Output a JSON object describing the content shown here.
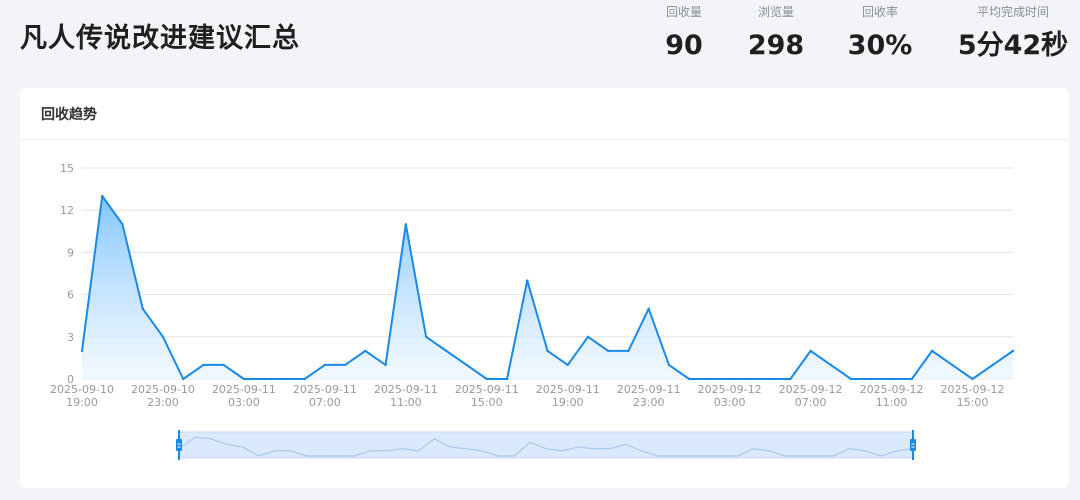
{
  "page": {
    "title": "凡人传说改进建议汇总"
  },
  "stats": [
    {
      "label": "回收量",
      "value": "90"
    },
    {
      "label": "浏览量",
      "value": "298"
    },
    {
      "label": "回收率",
      "value": "30%"
    },
    {
      "label": "平均完成时间",
      "value": "5分42秒"
    }
  ],
  "card": {
    "title": "回收趋势"
  },
  "colors": {
    "line": "#1a8ae8",
    "area_top": "#7cc3ff",
    "area_bottom": "#e8f4ff",
    "grid": "#e3e3e3",
    "slider_fill": "#dbe9fc",
    "slider_handle": "#1a8ae8"
  },
  "chart_data": {
    "type": "area",
    "title": "",
    "xlabel": "",
    "ylabel": "",
    "ylim": [
      0,
      15
    ],
    "yticks": [
      0,
      3,
      6,
      9,
      12,
      15
    ],
    "grid": true,
    "x_tick_labels": [
      [
        "2025-09-10",
        "19:00"
      ],
      [
        "2025-09-10",
        "23:00"
      ],
      [
        "2025-09-11",
        "03:00"
      ],
      [
        "2025-09-11",
        "07:00"
      ],
      [
        "2025-09-11",
        "11:00"
      ],
      [
        "2025-09-11",
        "15:00"
      ],
      [
        "2025-09-11",
        "19:00"
      ],
      [
        "2025-09-11",
        "23:00"
      ],
      [
        "2025-09-12",
        "03:00"
      ],
      [
        "2025-09-12",
        "07:00"
      ],
      [
        "2025-09-12",
        "11:00"
      ],
      [
        "2025-09-12",
        "15:00"
      ]
    ],
    "x_start": "2025-09-10 19:00",
    "x_interval_hours": 1,
    "values": [
      2,
      13,
      11,
      5,
      3,
      0,
      1,
      1,
      0,
      0,
      0,
      0,
      1,
      1,
      2,
      1,
      11,
      3,
      2,
      1,
      0,
      0,
      7,
      2,
      1,
      3,
      2,
      2,
      5,
      1,
      0,
      0,
      0,
      0,
      0,
      0,
      2,
      1,
      0,
      0,
      0,
      0,
      2,
      1,
      0,
      1,
      2
    ],
    "data_zoom": {
      "start": 0.12,
      "end": 1.0
    }
  }
}
